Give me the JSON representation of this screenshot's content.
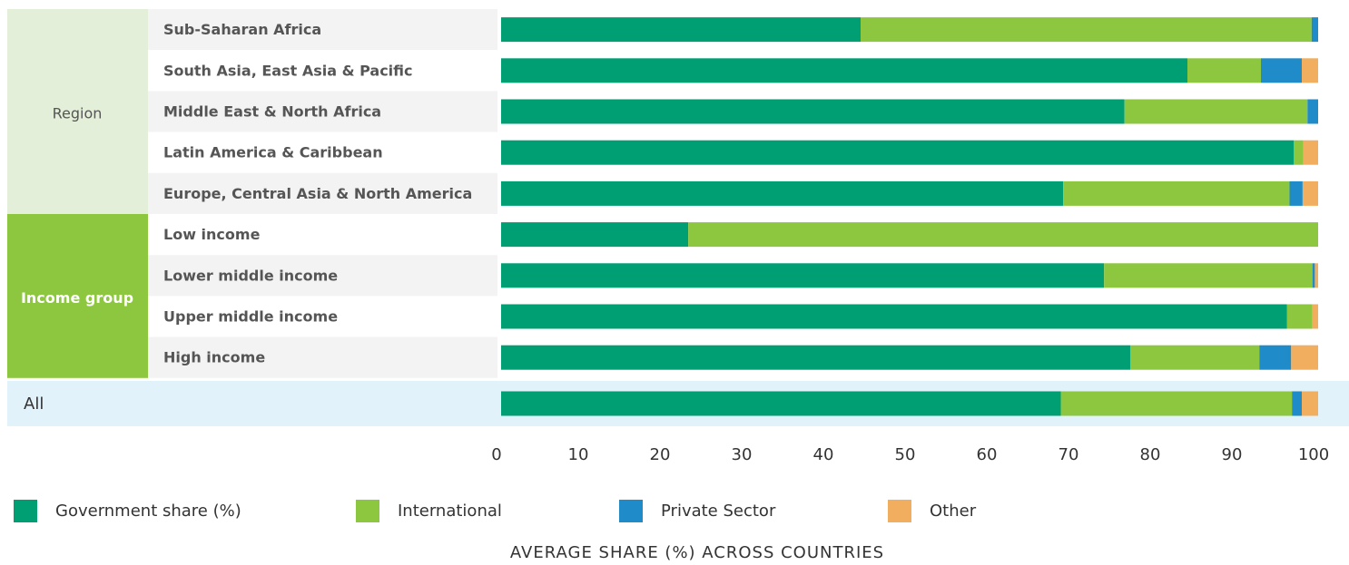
{
  "chart_data": {
    "type": "bar",
    "orientation": "horizontal",
    "stacked": true,
    "x_label": "AVERAGE SHARE (%) ACROSS COUNTRIES",
    "categories": [
      "Sub-Saharan Africa",
      "South Asia, East Asia & Pacific",
      "Middle East & North Africa",
      "Latin America & Caribbean",
      "Europe, Central Asia & North America",
      "Low income",
      "Lower middle income",
      "Upper middle income",
      "High income",
      "All"
    ],
    "category_groups": [
      "Region",
      "Region",
      "Region",
      "Region",
      "Region",
      "Income group",
      "Income group",
      "Income group",
      "Income group",
      null
    ],
    "series": [
      {
        "name": "Government share (%)",
        "color": "#009e73",
        "values": [
          44,
          84,
          76.3,
          97,
          68.8,
          22.9,
          73.8,
          96.2,
          77,
          68.5
        ]
      },
      {
        "name": "International",
        "color": "#8dc63f",
        "values": [
          55.2,
          9,
          22.4,
          1.2,
          27.7,
          77.1,
          25.5,
          3.1,
          15.8,
          28.3
        ]
      },
      {
        "name": "Private Sector",
        "color": "#1f8bc9",
        "values": [
          0.8,
          5,
          1.3,
          0,
          1.6,
          0,
          0.3,
          0,
          3.9,
          1.2
        ]
      },
      {
        "name": "Other",
        "color": "#f0ae5e",
        "values": [
          0,
          2,
          0,
          1.8,
          1.9,
          0,
          0.4,
          0.7,
          3.3,
          2
        ]
      }
    ],
    "xlim": [
      0,
      100
    ],
    "xticks": [
      0,
      10,
      20,
      30,
      40,
      50,
      60,
      70,
      80,
      90,
      100
    ],
    "legend": "bottom"
  }
}
